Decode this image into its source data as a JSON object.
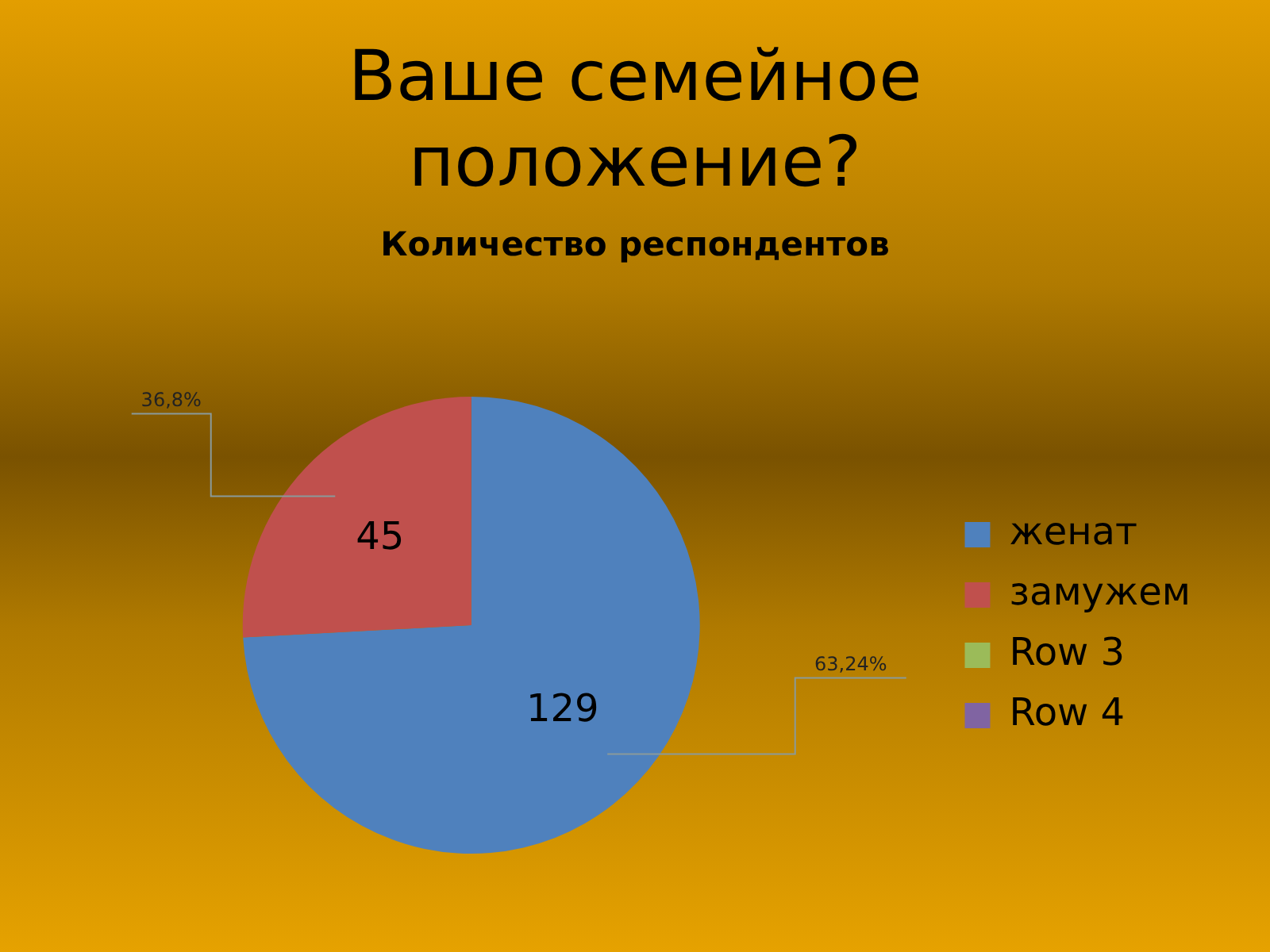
{
  "chart_data": {
    "type": "pie",
    "title": "Ваше семейное положение?",
    "subtitle": "Количество респондентов",
    "categories": [
      "женат",
      "замужем",
      "Row 3",
      "Row 4"
    ],
    "values": [
      129,
      45,
      0,
      0
    ],
    "value_labels": [
      "129",
      "45",
      null,
      null
    ],
    "colors": [
      "#4f81bd",
      "#c0504d",
      "#9bbb59",
      "#8064a2"
    ],
    "annotations": [
      "63,24%",
      "36,8%"
    ],
    "legend": "right"
  }
}
